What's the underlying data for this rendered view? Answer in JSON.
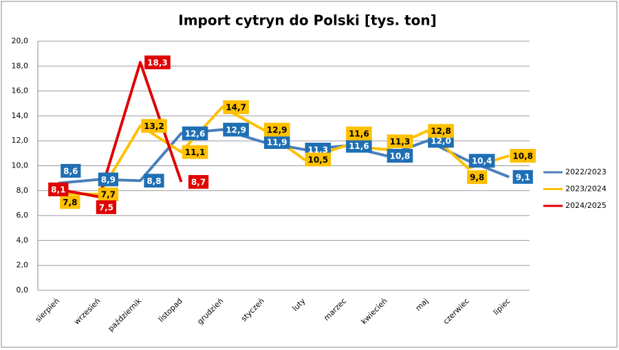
{
  "chart_data": {
    "type": "line",
    "title": "Import cytryn do Polski [tys. ton]",
    "categories": [
      "sierpień",
      "wrzesień",
      "październik",
      "listopad",
      "grudzień",
      "styczeń",
      "luty",
      "marzec",
      "kwiecień",
      "maj",
      "czerwiec",
      "lipiec"
    ],
    "series": [
      {
        "name": "2022/2023",
        "color": "#4a7ebb",
        "label_color": "#1f6fb5",
        "label_text_color": "#ffffff",
        "values": [
          8.6,
          8.9,
          8.8,
          12.6,
          12.9,
          11.9,
          11.3,
          11.6,
          10.8,
          12.0,
          10.4,
          9.1
        ],
        "value_labels": [
          "8,6",
          "8,9",
          "8,8",
          "12,6",
          "12,9",
          "11,9",
          "11,3",
          "11,6",
          "10,8",
          "12,0",
          "10,4",
          "9,1"
        ]
      },
      {
        "name": "2023/2024",
        "color": "#ffc000",
        "label_color": "#ffc000",
        "label_text_color": "#000000",
        "values": [
          7.8,
          7.7,
          13.2,
          11.1,
          14.7,
          12.9,
          10.5,
          11.6,
          11.3,
          12.8,
          9.8,
          10.8
        ],
        "value_labels": [
          "7,8",
          "7,7",
          "13,2",
          "11,1",
          "14,7",
          "12,9",
          "10,5",
          "11,6",
          "11,3",
          "12,8",
          "9,8",
          "10,8"
        ]
      },
      {
        "name": "2024/2025",
        "color": "#e00000",
        "label_color": "#e00000",
        "label_text_color": "#ffffff",
        "values": [
          8.1,
          7.5,
          18.3,
          8.7,
          null,
          null,
          null,
          null,
          null,
          null,
          null,
          null
        ],
        "value_labels": [
          "8,1",
          "7,5",
          "18,3",
          "8,7",
          null,
          null,
          null,
          null,
          null,
          null,
          null,
          null
        ]
      }
    ],
    "ylim": [
      0,
      20
    ],
    "yticks": [
      {
        "value": 0,
        "label": "0,0"
      },
      {
        "value": 2,
        "label": "2,0"
      },
      {
        "value": 4,
        "label": "4,0"
      },
      {
        "value": 6,
        "label": "6,0"
      },
      {
        "value": 8,
        "label": "8,0"
      },
      {
        "value": 10,
        "label": "10,0"
      },
      {
        "value": 12,
        "label": "12,0"
      },
      {
        "value": 14,
        "label": "14,0"
      },
      {
        "value": 16,
        "label": "16,0"
      },
      {
        "value": 18,
        "label": "18,0"
      },
      {
        "value": 20,
        "label": "20,0"
      }
    ],
    "grid": true,
    "legend": "right"
  }
}
